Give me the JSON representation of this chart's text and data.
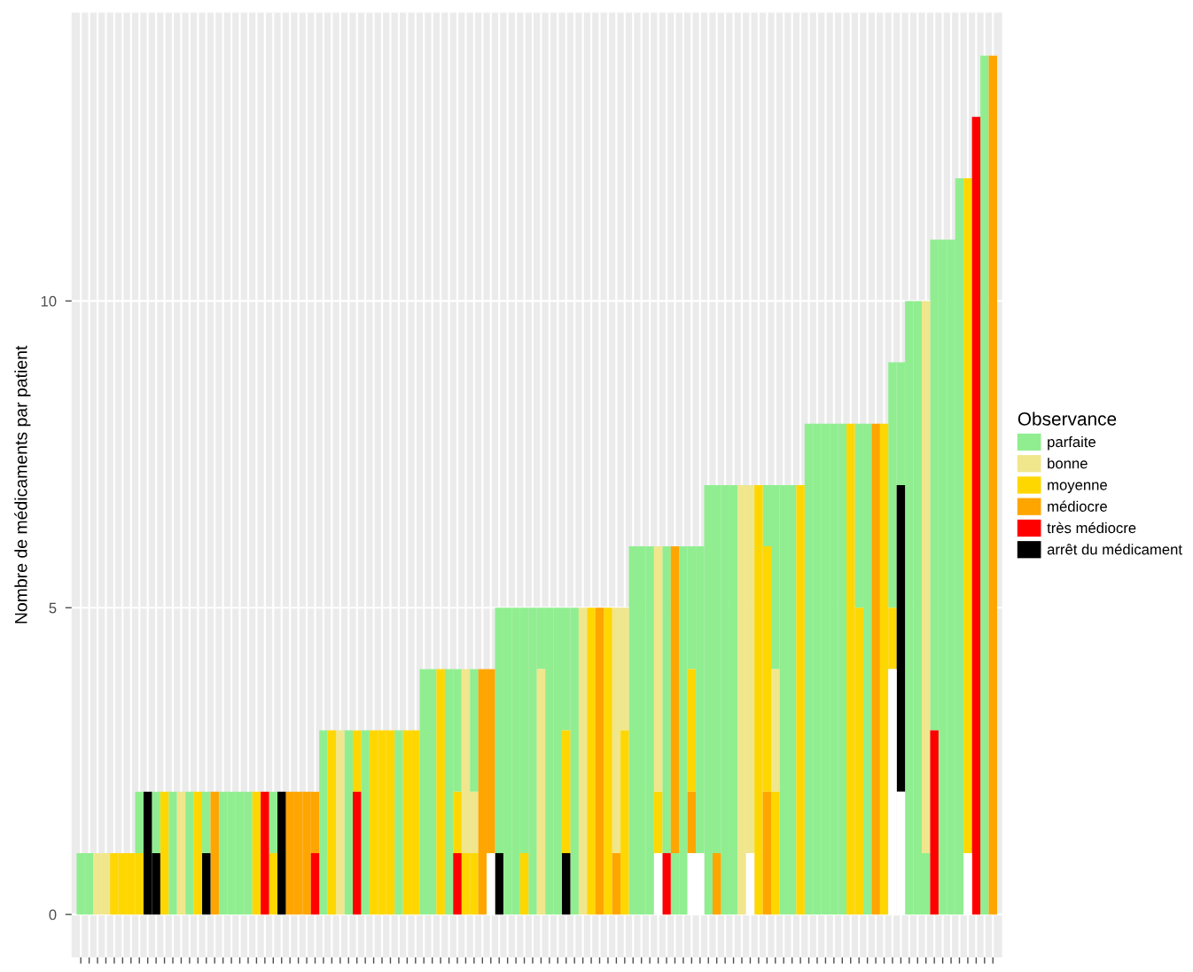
{
  "chart_data": {
    "type": "bar",
    "ylabel": "Nombre de médicaments par patient",
    "legend_title": "Observance",
    "legend": "right",
    "grid": true,
    "ylim": [
      -0.7,
      14.7
    ],
    "yticks": [
      0,
      5,
      10
    ],
    "categories": [
      null,
      null,
      null,
      null,
      null,
      null,
      null,
      null,
      null,
      null,
      null,
      null,
      null,
      null,
      null,
      null,
      null,
      null,
      null,
      null,
      null,
      null,
      null,
      null,
      null,
      null,
      null,
      null,
      null,
      null,
      null,
      null,
      null,
      null,
      null,
      null,
      null,
      null,
      null,
      null,
      null,
      null,
      null,
      null,
      null,
      null,
      null,
      null,
      null,
      null,
      null,
      null,
      null,
      null,
      null,
      null,
      null,
      null,
      null,
      null,
      null,
      null,
      null,
      null,
      null,
      null,
      null,
      null,
      null,
      null,
      null,
      null,
      null,
      null,
      null,
      null,
      null,
      null,
      null,
      null,
      null,
      null,
      null,
      null,
      null,
      null,
      null,
      null,
      null,
      null,
      null,
      null,
      null,
      null,
      null,
      null,
      null,
      null,
      null,
      null,
      null,
      null,
      null,
      null,
      null,
      null,
      null,
      null,
      null,
      null
    ],
    "series": [
      {
        "name": "parfaite",
        "color": "#90ee90",
        "values": [
          1,
          1,
          null,
          null,
          null,
          null,
          null,
          1,
          null,
          1,
          null,
          2,
          null,
          2,
          null,
          1,
          null,
          2,
          2,
          2,
          2,
          null,
          null,
          1,
          null,
          null,
          null,
          null,
          null,
          3,
          null,
          null,
          3,
          null,
          3,
          null,
          null,
          null,
          3,
          null,
          null,
          4,
          4,
          null,
          4,
          2,
          null,
          2,
          null,
          null,
          4,
          5,
          5,
          4,
          5,
          1,
          5,
          5,
          2,
          5,
          null,
          null,
          null,
          null,
          null,
          null,
          6,
          6,
          6,
          null,
          5,
          1,
          6,
          2,
          5,
          7,
          6,
          7,
          7,
          null,
          null,
          null,
          1,
          3,
          7,
          7,
          null,
          8,
          8,
          8,
          8,
          8,
          null,
          3,
          8,
          null,
          null,
          4,
          2,
          10,
          10,
          1,
          8,
          11,
          11,
          12,
          null,
          null,
          14,
          null
        ],
        "base": [
          0,
          0,
          null,
          null,
          null,
          null,
          null,
          1,
          null,
          1,
          null,
          0,
          null,
          0,
          null,
          1,
          null,
          0,
          0,
          0,
          0,
          null,
          null,
          1,
          null,
          null,
          null,
          null,
          null,
          0,
          null,
          null,
          0,
          null,
          0,
          null,
          null,
          null,
          0,
          null,
          null,
          0,
          0,
          null,
          0,
          2,
          null,
          2,
          null,
          null,
          1,
          0,
          0,
          1,
          0,
          4,
          0,
          0,
          3,
          0,
          null,
          null,
          null,
          null,
          null,
          null,
          0,
          0,
          0,
          null,
          1,
          0,
          0,
          4,
          1,
          0,
          1,
          0,
          0,
          null,
          null,
          null,
          6,
          4,
          0,
          0,
          null,
          0,
          0,
          0,
          0,
          0,
          null,
          5,
          0,
          null,
          null,
          5,
          7,
          0,
          0,
          0,
          3,
          0,
          0,
          0,
          null,
          null,
          0,
          null
        ]
      },
      {
        "name": "bonne",
        "color": "#f0e68c",
        "values": [
          null,
          null,
          1,
          1,
          null,
          null,
          null,
          null,
          null,
          null,
          null,
          null,
          2,
          null,
          null,
          null,
          null,
          null,
          null,
          null,
          null,
          null,
          null,
          null,
          null,
          null,
          null,
          null,
          null,
          null,
          null,
          3,
          null,
          null,
          null,
          null,
          null,
          null,
          null,
          null,
          null,
          null,
          null,
          null,
          null,
          null,
          3,
          1,
          null,
          null,
          null,
          null,
          null,
          null,
          null,
          4,
          null,
          null,
          null,
          null,
          5,
          null,
          null,
          null,
          4,
          2,
          null,
          null,
          null,
          4,
          null,
          null,
          null,
          null,
          null,
          null,
          null,
          null,
          null,
          7,
          6,
          null,
          null,
          2,
          null,
          null,
          null,
          null,
          null,
          null,
          null,
          null,
          null,
          null,
          null,
          null,
          null,
          null,
          null,
          null,
          null,
          9,
          null,
          null,
          null,
          null,
          null,
          null,
          null,
          null
        ],
        "base": [
          null,
          null,
          0,
          0,
          null,
          null,
          null,
          null,
          null,
          null,
          null,
          null,
          0,
          null,
          null,
          null,
          null,
          null,
          null,
          null,
          null,
          null,
          null,
          null,
          null,
          null,
          null,
          null,
          null,
          null,
          null,
          0,
          null,
          null,
          null,
          null,
          null,
          null,
          null,
          null,
          null,
          null,
          null,
          null,
          null,
          null,
          1,
          1,
          null,
          null,
          null,
          null,
          null,
          null,
          null,
          0,
          null,
          null,
          null,
          null,
          0,
          null,
          null,
          null,
          1,
          3,
          null,
          null,
          null,
          2,
          null,
          null,
          null,
          null,
          null,
          null,
          null,
          null,
          null,
          0,
          1,
          null,
          null,
          2,
          null,
          null,
          null,
          null,
          null,
          null,
          null,
          null,
          null,
          null,
          null,
          null,
          null,
          null,
          null,
          null,
          null,
          1,
          null,
          null,
          null,
          null,
          null,
          null,
          null,
          null
        ]
      },
      {
        "name": "moyenne",
        "color": "#ffd700",
        "values": [
          null,
          null,
          null,
          null,
          1,
          1,
          1,
          1,
          null,
          null,
          2,
          null,
          null,
          null,
          2,
          null,
          null,
          null,
          null,
          null,
          null,
          2,
          null,
          1,
          null,
          null,
          null,
          null,
          null,
          null,
          3,
          null,
          null,
          1,
          null,
          3,
          3,
          3,
          null,
          3,
          3,
          null,
          null,
          4,
          null,
          1,
          1,
          1,
          null,
          null,
          null,
          null,
          null,
          1,
          null,
          null,
          null,
          null,
          2,
          null,
          null,
          5,
          null,
          5,
          null,
          3,
          null,
          null,
          null,
          1,
          null,
          null,
          null,
          2,
          null,
          null,
          null,
          null,
          null,
          null,
          null,
          7,
          4,
          2,
          null,
          null,
          7,
          null,
          null,
          null,
          null,
          null,
          8,
          5,
          null,
          null,
          8,
          1,
          null,
          null,
          null,
          null,
          null,
          null,
          null,
          null,
          11,
          null,
          null,
          null
        ],
        "base": [
          null,
          null,
          null,
          null,
          0,
          0,
          0,
          0,
          null,
          null,
          0,
          null,
          null,
          null,
          0,
          null,
          null,
          null,
          null,
          null,
          null,
          0,
          null,
          0,
          null,
          null,
          null,
          null,
          null,
          null,
          0,
          null,
          null,
          2,
          null,
          0,
          0,
          0,
          null,
          0,
          0,
          null,
          null,
          0,
          null,
          1,
          0,
          0,
          null,
          null,
          null,
          null,
          null,
          0,
          null,
          null,
          null,
          null,
          1,
          null,
          null,
          0,
          null,
          0,
          null,
          0,
          null,
          null,
          null,
          1,
          null,
          null,
          null,
          2,
          null,
          null,
          null,
          null,
          null,
          null,
          null,
          0,
          2,
          0,
          null,
          null,
          0,
          null,
          null,
          null,
          null,
          null,
          0,
          0,
          null,
          null,
          0,
          4,
          null,
          null,
          null,
          null,
          null,
          null,
          null,
          null,
          1,
          null,
          null,
          null
        ]
      },
      {
        "name": "médiocre",
        "color": "#ffa500",
        "values": [
          null,
          null,
          null,
          null,
          null,
          null,
          null,
          null,
          null,
          null,
          null,
          null,
          null,
          null,
          null,
          null,
          2,
          null,
          null,
          null,
          null,
          null,
          null,
          null,
          null,
          2,
          2,
          2,
          1,
          null,
          null,
          null,
          null,
          null,
          null,
          null,
          null,
          null,
          null,
          null,
          null,
          null,
          null,
          null,
          null,
          null,
          null,
          null,
          4,
          3,
          null,
          null,
          null,
          null,
          null,
          null,
          null,
          null,
          null,
          null,
          null,
          null,
          5,
          null,
          1,
          null,
          null,
          null,
          null,
          null,
          null,
          5,
          null,
          1,
          null,
          null,
          1,
          null,
          null,
          null,
          null,
          null,
          2,
          null,
          null,
          null,
          null,
          null,
          null,
          null,
          null,
          null,
          null,
          null,
          null,
          8,
          null,
          null,
          null,
          null,
          null,
          null,
          null,
          null,
          null,
          null,
          null,
          null,
          null,
          14
        ],
        "base": [
          null,
          null,
          null,
          null,
          null,
          null,
          null,
          null,
          null,
          null,
          null,
          null,
          null,
          null,
          null,
          null,
          0,
          null,
          null,
          null,
          null,
          null,
          null,
          null,
          null,
          0,
          0,
          0,
          1,
          null,
          null,
          null,
          null,
          null,
          null,
          null,
          null,
          null,
          null,
          null,
          null,
          null,
          null,
          null,
          null,
          null,
          null,
          null,
          0,
          1,
          null,
          null,
          null,
          null,
          null,
          null,
          null,
          null,
          null,
          null,
          null,
          null,
          0,
          null,
          0,
          null,
          null,
          null,
          null,
          null,
          null,
          1,
          null,
          1,
          null,
          null,
          0,
          null,
          null,
          null,
          null,
          null,
          0,
          null,
          null,
          null,
          null,
          null,
          null,
          null,
          null,
          null,
          null,
          null,
          null,
          0,
          null,
          null,
          null,
          null,
          null,
          null,
          null,
          null,
          null,
          null,
          null,
          null,
          null,
          0
        ]
      },
      {
        "name": "très médiocre",
        "color": "#ff0000",
        "values": [
          null,
          null,
          null,
          null,
          null,
          null,
          null,
          null,
          null,
          null,
          null,
          null,
          null,
          null,
          null,
          null,
          null,
          null,
          null,
          null,
          null,
          null,
          2,
          null,
          null,
          null,
          null,
          null,
          1,
          null,
          null,
          null,
          null,
          2,
          null,
          null,
          null,
          null,
          null,
          null,
          null,
          null,
          null,
          null,
          null,
          1,
          null,
          null,
          null,
          null,
          null,
          null,
          null,
          null,
          null,
          null,
          null,
          null,
          null,
          null,
          null,
          null,
          null,
          null,
          null,
          null,
          null,
          null,
          null,
          null,
          1,
          null,
          null,
          null,
          null,
          null,
          null,
          null,
          null,
          null,
          null,
          null,
          null,
          null,
          null,
          null,
          null,
          null,
          null,
          null,
          null,
          null,
          null,
          null,
          null,
          null,
          null,
          null,
          null,
          null,
          null,
          null,
          3,
          null,
          null,
          null,
          null,
          13,
          null,
          null
        ]
      },
      {
        "name": "arrêt du médicament",
        "color": "#000000",
        "values": [
          null,
          null,
          null,
          null,
          null,
          null,
          null,
          null,
          2,
          1,
          null,
          null,
          null,
          null,
          null,
          1,
          null,
          null,
          null,
          null,
          null,
          null,
          null,
          null,
          2,
          null,
          null,
          null,
          null,
          null,
          null,
          null,
          null,
          null,
          null,
          null,
          null,
          null,
          null,
          null,
          null,
          null,
          null,
          null,
          null,
          null,
          null,
          null,
          null,
          null,
          1,
          null,
          null,
          null,
          null,
          null,
          null,
          null,
          1,
          null,
          null,
          null,
          null,
          null,
          null,
          null,
          null,
          null,
          null,
          null,
          null,
          null,
          null,
          null,
          null,
          null,
          null,
          null,
          null,
          null,
          null,
          null,
          null,
          null,
          null,
          null,
          null,
          null,
          null,
          null,
          null,
          null,
          null,
          null,
          null,
          null,
          null,
          null,
          5,
          null,
          null,
          null,
          null,
          null,
          null,
          null,
          null,
          null,
          null,
          null
        ],
        "base": [
          null,
          null,
          null,
          null,
          null,
          null,
          null,
          null,
          0,
          0,
          null,
          null,
          null,
          null,
          null,
          0,
          null,
          null,
          null,
          null,
          null,
          null,
          null,
          null,
          0,
          null,
          null,
          null,
          null,
          null,
          null,
          null,
          null,
          null,
          null,
          null,
          null,
          null,
          null,
          null,
          null,
          null,
          null,
          null,
          null,
          null,
          null,
          null,
          null,
          null,
          0,
          null,
          null,
          null,
          null,
          null,
          null,
          null,
          0,
          null,
          null,
          null,
          null,
          null,
          null,
          null,
          null,
          null,
          null,
          null,
          null,
          null,
          null,
          null,
          null,
          null,
          null,
          null,
          null,
          null,
          null,
          null,
          null,
          null,
          null,
          null,
          null,
          null,
          null,
          null,
          null,
          null,
          null,
          null,
          null,
          null,
          null,
          null,
          2,
          null,
          null,
          null,
          null,
          null,
          null,
          null,
          null,
          null,
          null,
          null
        ]
      },
      {
        "color": "#ffffff",
        "values": [
          null,
          null,
          null,
          null,
          null,
          null,
          null,
          null,
          null,
          null,
          null,
          null,
          null,
          null,
          null,
          null,
          null,
          null,
          null,
          null,
          null,
          null,
          null,
          null,
          null,
          null,
          null,
          null,
          null,
          null,
          null,
          null,
          null,
          null,
          null,
          null,
          null,
          null,
          null,
          null,
          null,
          null,
          null,
          null,
          null,
          null,
          null,
          null,
          null,
          1,
          null,
          null,
          null,
          null,
          null,
          null,
          null,
          null,
          null,
          null,
          null,
          null,
          null,
          null,
          null,
          null,
          null,
          null,
          null,
          1,
          null,
          null,
          null,
          1,
          1,
          null,
          null,
          null,
          null,
          null,
          1,
          null,
          null,
          null,
          null,
          null,
          null,
          null,
          null,
          null,
          null,
          null,
          null,
          null,
          null,
          null,
          null,
          4,
          2,
          null,
          null,
          null,
          null,
          null,
          null,
          null,
          1,
          null,
          null,
          null
        ]
      }
    ]
  }
}
